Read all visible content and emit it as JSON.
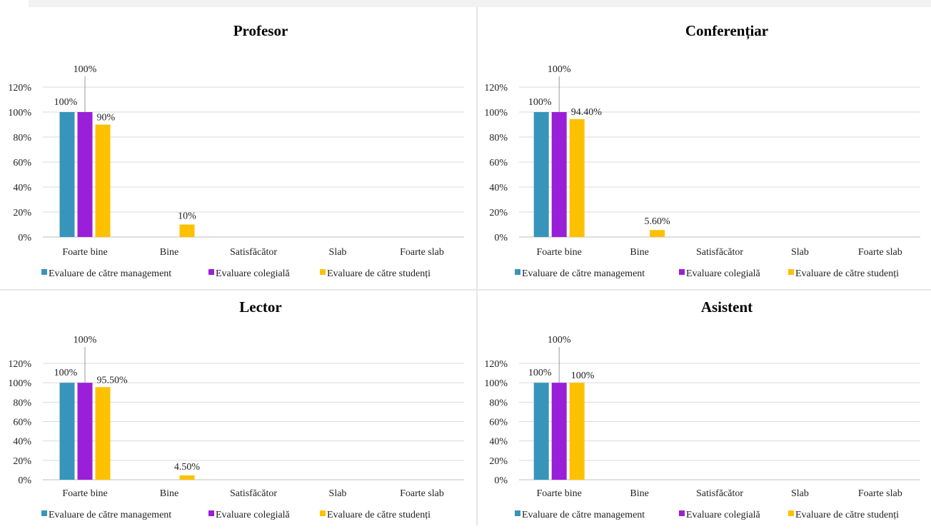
{
  "legend": [
    "Evaluare de către management",
    "Evaluare colegială",
    "Evaluare de către studenți"
  ],
  "colors": {
    "management": "#3795bb",
    "colegiala": "#9a1fd8",
    "studenti": "#fec100"
  },
  "chart_data": [
    {
      "type": "bar",
      "title": "Profesor",
      "categories": [
        "Foarte bine",
        "Bine",
        "Satisfăcător",
        "Slab",
        "Foarte slab"
      ],
      "ylim": [
        0,
        120
      ],
      "yticks": [
        "0%",
        "20%",
        "40%",
        "60%",
        "80%",
        "100%",
        "120%"
      ],
      "series": [
        {
          "name": "Evaluare de către management",
          "values": [
            100,
            0,
            0,
            0,
            0
          ],
          "labels": [
            "100%",
            "",
            "",
            "",
            ""
          ]
        },
        {
          "name": "Evaluare colegială",
          "values": [
            100,
            0,
            0,
            0,
            0
          ],
          "labels": [
            "100%",
            "",
            "",
            "",
            ""
          ]
        },
        {
          "name": "Evaluare de către studenți",
          "values": [
            90,
            10,
            0,
            0,
            0
          ],
          "labels": [
            "90%",
            "10%",
            "",
            "",
            ""
          ]
        }
      ],
      "legend_position": "bottom",
      "grid": true
    },
    {
      "type": "bar",
      "title": "Conferențiar",
      "categories": [
        "Foarte bine",
        "Bine",
        "Satisfăcător",
        "Slab",
        "Foarte slab"
      ],
      "ylim": [
        0,
        120
      ],
      "yticks": [
        "0%",
        "20%",
        "40%",
        "60%",
        "80%",
        "100%",
        "120%"
      ],
      "series": [
        {
          "name": "Evaluare de către management",
          "values": [
            100,
            0,
            0,
            0,
            0
          ],
          "labels": [
            "100%",
            "",
            "",
            "",
            ""
          ]
        },
        {
          "name": "Evaluare colegială",
          "values": [
            100,
            0,
            0,
            0,
            0
          ],
          "labels": [
            "100%",
            "",
            "",
            "",
            ""
          ]
        },
        {
          "name": "Evaluare de către studenți",
          "values": [
            94.4,
            5.6,
            0,
            0,
            0
          ],
          "labels": [
            "94.40%",
            "5.60%",
            "",
            "",
            ""
          ]
        }
      ],
      "legend_position": "bottom",
      "grid": true
    },
    {
      "type": "bar",
      "title": "Lector",
      "categories": [
        "Foarte bine",
        "Bine",
        "Satisfăcător",
        "Slab",
        "Foarte slab"
      ],
      "ylim": [
        0,
        120
      ],
      "yticks": [
        "0%",
        "20%",
        "40%",
        "60%",
        "80%",
        "100%",
        "120%"
      ],
      "series": [
        {
          "name": "Evaluare de către management",
          "values": [
            100,
            0,
            0,
            0,
            0
          ],
          "labels": [
            "100%",
            "",
            "",
            "",
            ""
          ]
        },
        {
          "name": "Evaluare colegială",
          "values": [
            100,
            0,
            0,
            0,
            0
          ],
          "labels": [
            "100%",
            "",
            "",
            "",
            ""
          ]
        },
        {
          "name": "Evaluare de către studenți",
          "values": [
            95.5,
            4.5,
            0,
            0,
            0
          ],
          "labels": [
            "95.50%",
            "4.50%",
            "",
            "",
            ""
          ]
        }
      ],
      "legend_position": "bottom",
      "grid": true
    },
    {
      "type": "bar",
      "title": "Asistent",
      "categories": [
        "Foarte bine",
        "Bine",
        "Satisfăcător",
        "Slab",
        "Foarte slab"
      ],
      "ylim": [
        0,
        120
      ],
      "yticks": [
        "0%",
        "20%",
        "40%",
        "60%",
        "80%",
        "100%",
        "120%"
      ],
      "series": [
        {
          "name": "Evaluare de către management",
          "values": [
            100,
            0,
            0,
            0,
            0
          ],
          "labels": [
            "100%",
            "",
            "",
            "",
            ""
          ]
        },
        {
          "name": "Evaluare colegială",
          "values": [
            100,
            0,
            0,
            0,
            0
          ],
          "labels": [
            "100%",
            "",
            "",
            "",
            ""
          ]
        },
        {
          "name": "Evaluare de către studenți",
          "values": [
            100,
            0,
            0,
            0,
            0
          ],
          "labels": [
            "100%",
            "",
            "",
            "",
            ""
          ]
        }
      ],
      "legend_position": "bottom",
      "grid": true
    }
  ]
}
